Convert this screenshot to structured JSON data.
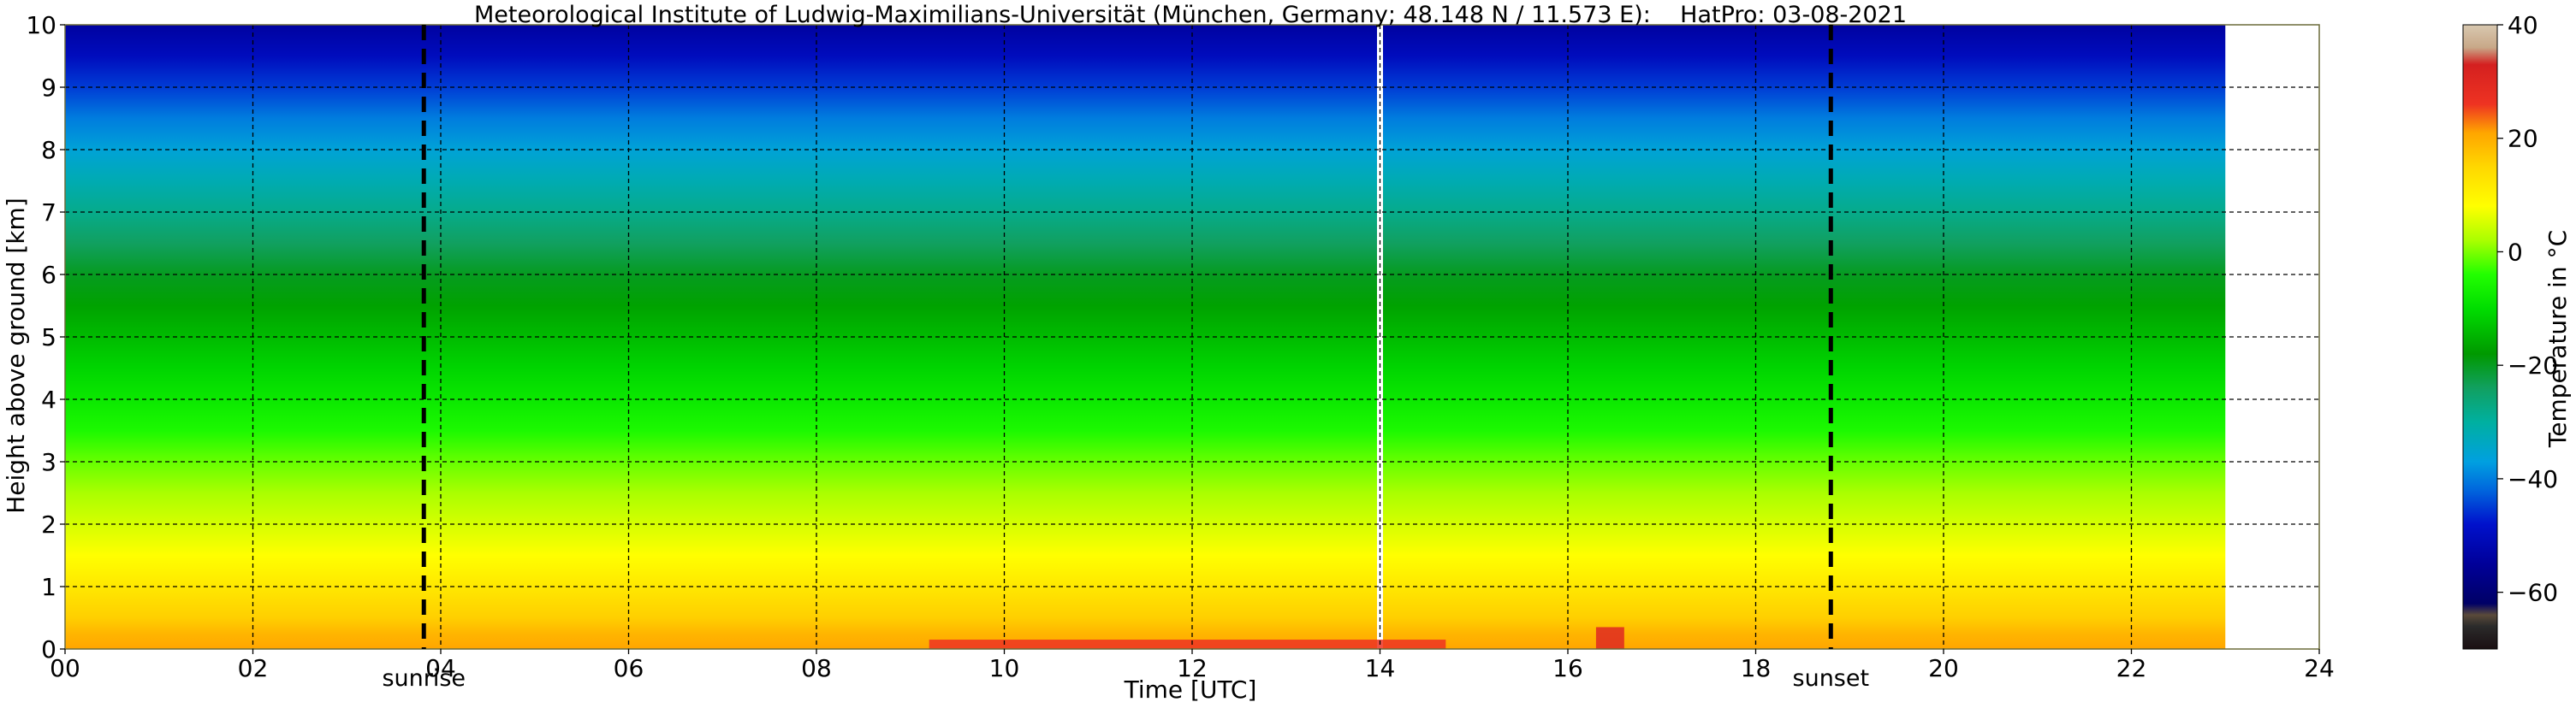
{
  "chart_data": {
    "type": "heatmap",
    "title": "Meteorological Institute of Ludwig-Maximilians-Universität (München, Germany; 48.148 N / 11.573 E):    HatPro: 03-08-2021",
    "xlabel": "Time [UTC]",
    "ylabel": "Height above ground [km]",
    "xlim": [
      0,
      24
    ],
    "ylim": [
      0,
      10
    ],
    "x_ticks": [
      0,
      2,
      4,
      6,
      8,
      10,
      12,
      14,
      16,
      18,
      20,
      22,
      24
    ],
    "x_tick_labels": [
      "00",
      "02",
      "04",
      "06",
      "08",
      "10",
      "12",
      "14",
      "16",
      "18",
      "20",
      "22",
      "24"
    ],
    "y_ticks": [
      0,
      1,
      2,
      3,
      4,
      5,
      6,
      7,
      8,
      9,
      10
    ],
    "y_tick_labels": [
      "0",
      "1",
      "2",
      "3",
      "4",
      "5",
      "6",
      "7",
      "8",
      "9",
      "10"
    ],
    "grid": true,
    "data_end_time": 23.0,
    "data_gap_time": 14.0,
    "markers": [
      {
        "label": "sunrise",
        "time": 3.82
      },
      {
        "label": "sunset",
        "time": 18.8
      }
    ],
    "temperature_profile_km_c": [
      [
        0.0,
        21
      ],
      [
        0.25,
        19
      ],
      [
        0.5,
        16
      ],
      [
        1.0,
        12
      ],
      [
        1.5,
        8
      ],
      [
        2.0,
        5
      ],
      [
        2.5,
        2
      ],
      [
        3.0,
        -1
      ],
      [
        3.5,
        -5
      ],
      [
        4.0,
        -8
      ],
      [
        4.5,
        -11
      ],
      [
        5.0,
        -14
      ],
      [
        5.5,
        -17
      ],
      [
        6.0,
        -20
      ],
      [
        6.5,
        -24
      ],
      [
        7.0,
        -28
      ],
      [
        7.5,
        -32
      ],
      [
        8.0,
        -36
      ],
      [
        8.5,
        -40
      ],
      [
        9.0,
        -45
      ],
      [
        9.5,
        -50
      ],
      [
        10.0,
        -54
      ]
    ],
    "warm_anomalies": [
      {
        "time_start": 9.2,
        "time_end": 14.7,
        "top_km": 0.15,
        "temperature_c": 26
      },
      {
        "time_start": 16.3,
        "time_end": 16.6,
        "top_km": 0.35,
        "temperature_c": 30
      }
    ],
    "colorbar": {
      "label": "Temperature in °C",
      "range": [
        -70,
        40
      ],
      "ticks": [
        40,
        20,
        0,
        -20,
        -40,
        -60
      ],
      "tick_labels": [
        "40",
        "20",
        "0",
        "−20",
        "−40",
        "−60"
      ],
      "stops": [
        {
          "value": -70,
          "color": "#1a0f12"
        },
        {
          "value": -66,
          "color": "#2b2b2b"
        },
        {
          "value": -64,
          "color": "#5a4a3a"
        },
        {
          "value": -62,
          "color": "#000066"
        },
        {
          "value": -55,
          "color": "#000099"
        },
        {
          "value": -48,
          "color": "#0011cc"
        },
        {
          "value": -42,
          "color": "#0066dd"
        },
        {
          "value": -37,
          "color": "#00a0e0"
        },
        {
          "value": -30,
          "color": "#00b0a0"
        },
        {
          "value": -24,
          "color": "#11a060"
        },
        {
          "value": -18,
          "color": "#009900"
        },
        {
          "value": -10,
          "color": "#00dd00"
        },
        {
          "value": -4,
          "color": "#22ff00"
        },
        {
          "value": 2,
          "color": "#aaff00"
        },
        {
          "value": 8,
          "color": "#ffff00"
        },
        {
          "value": 15,
          "color": "#ffd700"
        },
        {
          "value": 21,
          "color": "#ffa500"
        },
        {
          "value": 26,
          "color": "#ee3322"
        },
        {
          "value": 33,
          "color": "#d42020"
        },
        {
          "value": 36,
          "color": "#c8a888"
        },
        {
          "value": 40,
          "color": "#d8c8b0"
        }
      ]
    }
  }
}
